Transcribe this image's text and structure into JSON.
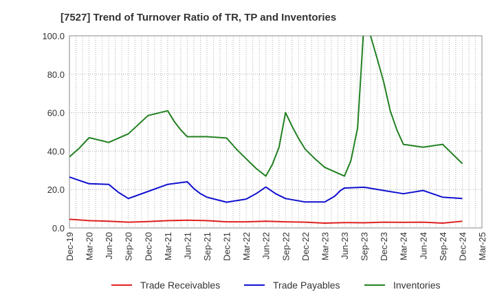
{
  "chart_data": {
    "type": "line",
    "title": "[7527]  Trend of Turnover Ratio of TR, TP and Inventories",
    "xlabel": "",
    "ylabel": "",
    "ylim": [
      0,
      100
    ],
    "y_ticks": [
      "0.0",
      "20.0",
      "40.0",
      "60.0",
      "80.0",
      "100.0"
    ],
    "x_tick_labels": [
      "Dec-19",
      "Mar-20",
      "Jun-20",
      "Sep-20",
      "Dec-20",
      "Mar-21",
      "Jun-21",
      "Sep-21",
      "Dec-21",
      "Mar-22",
      "Jun-22",
      "Sep-22",
      "Dec-22",
      "Mar-23",
      "Jun-23",
      "Sep-23",
      "Dec-23",
      "Mar-24",
      "Jun-24",
      "Sep-24",
      "Dec-24",
      "Mar-25"
    ],
    "grid": true,
    "legend_position": "bottom",
    "series": [
      {
        "name": "Trade Receivables",
        "color": "#e02020",
        "points": [
          [
            0,
            4.5
          ],
          [
            1,
            3.8
          ],
          [
            2,
            3.5
          ],
          [
            3,
            3.0
          ],
          [
            4,
            3.3
          ],
          [
            5,
            3.8
          ],
          [
            6,
            4.0
          ],
          [
            7,
            3.8
          ],
          [
            8,
            3.2
          ],
          [
            9,
            3.2
          ],
          [
            10,
            3.5
          ],
          [
            11,
            3.2
          ],
          [
            12,
            3.0
          ],
          [
            13,
            2.5
          ],
          [
            14,
            2.8
          ],
          [
            15,
            2.7
          ],
          [
            16,
            3.0
          ],
          [
            17,
            2.9
          ],
          [
            18,
            3.0
          ],
          [
            19,
            2.5
          ],
          [
            20,
            3.5
          ]
        ]
      },
      {
        "name": "Trade Payables",
        "color": "#1010d0",
        "points": [
          [
            0,
            26.5
          ],
          [
            1,
            23.0
          ],
          [
            2,
            22.7
          ],
          [
            2.5,
            18.5
          ],
          [
            3,
            15.3
          ],
          [
            4,
            19.0
          ],
          [
            5,
            22.7
          ],
          [
            6,
            24.0
          ],
          [
            6.33,
            20.5
          ],
          [
            6.67,
            17.8
          ],
          [
            7,
            16.0
          ],
          [
            8,
            13.4
          ],
          [
            9,
            15.0
          ],
          [
            9.5,
            17.8
          ],
          [
            10,
            21.3
          ],
          [
            10.5,
            17.8
          ],
          [
            11,
            15.3
          ],
          [
            12,
            13.5
          ],
          [
            13,
            13.5
          ],
          [
            13.5,
            16.5
          ],
          [
            13.8,
            19.5
          ],
          [
            14,
            20.8
          ],
          [
            15,
            21.2
          ],
          [
            16,
            19.5
          ],
          [
            17,
            17.8
          ],
          [
            18,
            19.5
          ],
          [
            19,
            16.0
          ],
          [
            20,
            15.3
          ]
        ]
      },
      {
        "name": "Inventories",
        "color": "#208020",
        "points": [
          [
            0,
            37.0
          ],
          [
            0.5,
            41.5
          ],
          [
            1,
            47.0
          ],
          [
            2,
            44.5
          ],
          [
            3,
            49.0
          ],
          [
            4,
            58.5
          ],
          [
            5,
            61.0
          ],
          [
            5.33,
            55.5
          ],
          [
            5.67,
            51.0
          ],
          [
            6,
            47.5
          ],
          [
            7,
            47.5
          ],
          [
            8,
            46.8
          ],
          [
            8.5,
            41.0
          ],
          [
            9,
            36.0
          ],
          [
            9.5,
            31.0
          ],
          [
            10,
            27.0
          ],
          [
            10.33,
            33.0
          ],
          [
            10.67,
            42.0
          ],
          [
            11,
            60.0
          ],
          [
            11.33,
            53.0
          ],
          [
            11.67,
            46.5
          ],
          [
            12,
            41.0
          ],
          [
            12.5,
            36.0
          ],
          [
            13,
            31.5
          ],
          [
            14,
            27.0
          ],
          [
            14.33,
            35.0
          ],
          [
            14.67,
            52.0
          ],
          [
            14.85,
            82.0
          ],
          [
            15,
            108.0
          ],
          [
            15.33,
            100.0
          ],
          [
            15.67,
            88.0
          ],
          [
            16,
            76.0
          ],
          [
            16.33,
            61.0
          ],
          [
            16.67,
            51.0
          ],
          [
            17,
            43.5
          ],
          [
            18,
            42.0
          ],
          [
            19,
            43.5
          ],
          [
            19.5,
            38.5
          ],
          [
            20,
            33.5
          ]
        ]
      }
    ]
  }
}
